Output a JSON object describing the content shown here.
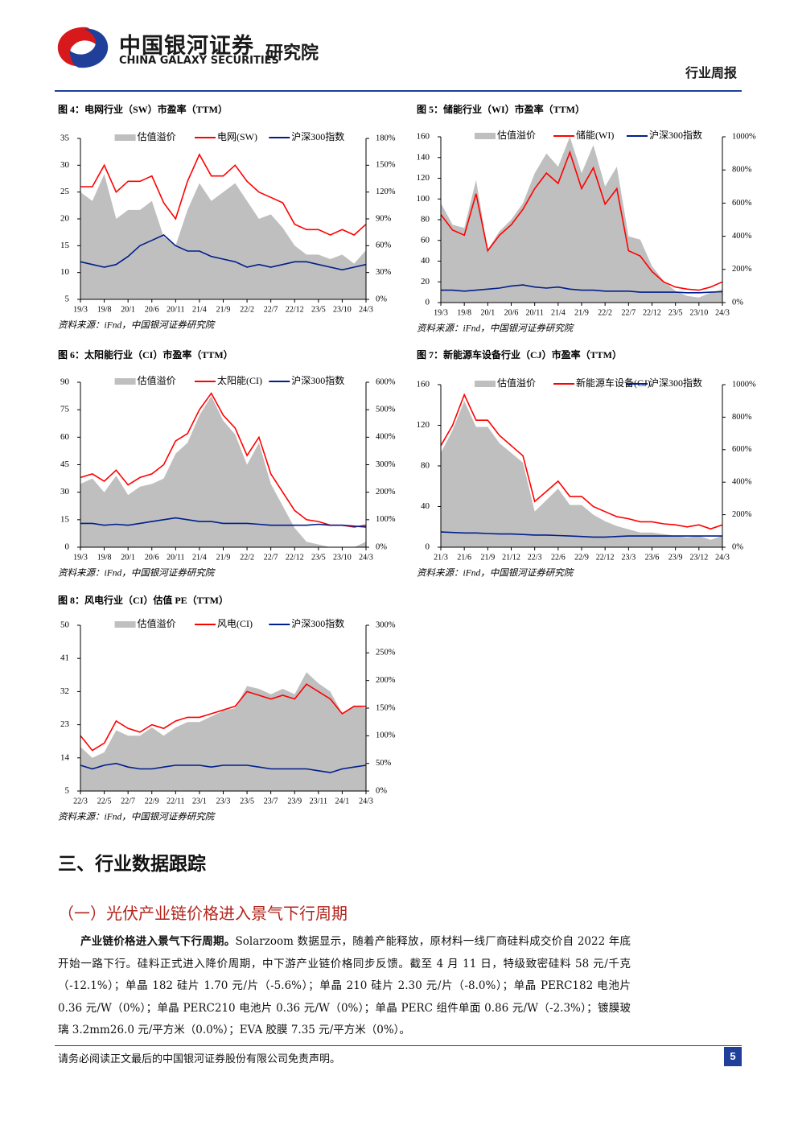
{
  "header": {
    "company": "中国银河证券",
    "company_en": "CHINA GALAXY SECURITIES",
    "institute": "研究院",
    "report_type": "行业周报"
  },
  "chart_data": [
    {
      "type": "line",
      "title": "图 4：电网行业（SW）市盈率（TTM）",
      "source": "资料来源：iFnd，中国银河证券研究院",
      "categories": [
        "19/3",
        null,
        "19/8",
        null,
        "20/1",
        null,
        "20/6",
        null,
        "20/11",
        null,
        "21/4",
        null,
        "21/9",
        null,
        "22/2",
        null,
        "22/7",
        null,
        "22/12",
        null,
        "23/5",
        null,
        "23/10",
        null,
        "24/3"
      ],
      "ylim": [
        5,
        35
      ],
      "yticks": [
        5,
        10,
        15,
        20,
        25,
        30,
        35
      ],
      "y2lim": [
        0,
        180
      ],
      "y2ticks": [
        {
          "value": 0,
          "label": "0%"
        },
        {
          "value": 30,
          "label": "30%"
        },
        {
          "value": 60,
          "label": "60%"
        },
        {
          "value": 90,
          "label": "90%"
        },
        {
          "value": 120,
          "label": "120%"
        },
        {
          "value": 150,
          "label": "150%"
        },
        {
          "value": 180,
          "label": "180%"
        }
      ],
      "series": [
        {
          "name": "估值溢价",
          "color": "#bfbfbf",
          "axis": "y2",
          "values": [
            120,
            110,
            140,
            90,
            100,
            100,
            110,
            70,
            60,
            100,
            130,
            110,
            120,
            130,
            110,
            90,
            95,
            80,
            60,
            50,
            50,
            45,
            50,
            40,
            55
          ]
        },
        {
          "name": "电网(SW)",
          "color": "#ff0000",
          "values": [
            26,
            26,
            30,
            25,
            27,
            27,
            28,
            23,
            20,
            27,
            32,
            28,
            28,
            30,
            27,
            25,
            24,
            23,
            19,
            18,
            18,
            17,
            18,
            17,
            19
          ]
        },
        {
          "name": "沪深300指数",
          "color": "#001f8c",
          "values": [
            12,
            11.5,
            11,
            11.5,
            13,
            15,
            16,
            17,
            15,
            14,
            14,
            13,
            12.5,
            12,
            11,
            11.5,
            11,
            11.5,
            12,
            12,
            11.5,
            11,
            10.5,
            11,
            11.5
          ]
        }
      ]
    },
    {
      "type": "line",
      "title": "图 5：储能行业（WI）市盈率（TTM）",
      "source": "资料来源：iFnd，中国银河证券研究院",
      "categories": [
        "19/3",
        null,
        "19/8",
        null,
        "20/1",
        null,
        "20/6",
        null,
        "20/11",
        null,
        "21/4",
        null,
        "21/9",
        null,
        "22/2",
        null,
        "22/7",
        null,
        "22/12",
        null,
        "23/5",
        null,
        "23/10",
        null,
        "24/3"
      ],
      "ylim": [
        0,
        160
      ],
      "yticks": [
        0,
        20,
        40,
        60,
        80,
        100,
        120,
        140,
        160
      ],
      "y2lim": [
        0,
        1000
      ],
      "y2ticks": [
        {
          "value": 0,
          "label": "0%"
        },
        {
          "value": 200,
          "label": "200%"
        },
        {
          "value": 400,
          "label": "400%"
        },
        {
          "value": 600,
          "label": "600%"
        },
        {
          "value": 800,
          "label": "800%"
        },
        {
          "value": 1000,
          "label": "1000%"
        }
      ],
      "series": [
        {
          "name": "估值溢价",
          "color": "#bfbfbf",
          "axis": "y2",
          "values": [
            600,
            470,
            450,
            740,
            320,
            430,
            500,
            600,
            780,
            900,
            820,
            1000,
            780,
            950,
            700,
            820,
            400,
            380,
            220,
            130,
            70,
            40,
            30,
            60,
            80
          ]
        },
        {
          "name": "储能(WI)",
          "color": "#ff0000",
          "values": [
            85,
            70,
            65,
            105,
            50,
            65,
            75,
            90,
            110,
            125,
            115,
            145,
            110,
            130,
            95,
            110,
            50,
            45,
            30,
            20,
            15,
            13,
            12,
            15,
            20
          ]
        },
        {
          "name": "沪深300指数",
          "color": "#001f8c",
          "values": [
            12,
            12,
            11,
            12,
            13,
            14,
            16,
            17,
            15,
            14,
            15,
            13,
            12,
            12,
            11,
            11,
            11,
            10,
            10,
            10,
            10,
            9.5,
            9.5,
            10,
            10.5
          ]
        }
      ]
    },
    {
      "type": "line",
      "title": "图 6：太阳能行业（CI）市盈率（TTM）",
      "source": "资料来源：iFnd，中国银河证券研究院",
      "categories": [
        "19/3",
        null,
        "19/8",
        null,
        "20/1",
        null,
        "20/6",
        null,
        "20/11",
        null,
        "21/4",
        null,
        "21/9",
        null,
        "22/2",
        null,
        "22/7",
        null,
        "22/12",
        null,
        "23/5",
        null,
        "23/10",
        null,
        "24/3"
      ],
      "ylim": [
        0,
        90
      ],
      "yticks": [
        0,
        15,
        30,
        45,
        60,
        75,
        90
      ],
      "y2lim": [
        0,
        600
      ],
      "y2ticks": [
        {
          "value": 0,
          "label": "0%"
        },
        {
          "value": 100,
          "label": "100%"
        },
        {
          "value": 200,
          "label": "200%"
        },
        {
          "value": 300,
          "label": "300%"
        },
        {
          "value": 400,
          "label": "400%"
        },
        {
          "value": 500,
          "label": "500%"
        },
        {
          "value": 600,
          "label": "600%"
        }
      ],
      "series": [
        {
          "name": "估值溢价",
          "color": "#bfbfbf",
          "axis": "y2",
          "values": [
            230,
            250,
            200,
            260,
            190,
            220,
            230,
            250,
            340,
            380,
            480,
            550,
            460,
            410,
            300,
            380,
            230,
            150,
            70,
            20,
            10,
            0,
            0,
            0,
            20
          ]
        },
        {
          "name": "太阳能(CI)",
          "color": "#ff0000",
          "values": [
            38,
            40,
            36,
            42,
            34,
            38,
            40,
            45,
            58,
            62,
            75,
            84,
            72,
            65,
            50,
            60,
            40,
            30,
            20,
            15,
            14,
            12,
            12,
            11,
            12
          ]
        },
        {
          "name": "沪深300指数",
          "color": "#001f8c",
          "values": [
            13,
            13,
            12,
            12.5,
            12,
            13,
            14,
            15,
            16,
            15,
            14,
            14,
            13,
            13,
            13,
            12.5,
            12,
            12,
            12,
            12,
            12.5,
            12,
            12,
            11.5,
            11
          ]
        }
      ]
    },
    {
      "type": "line",
      "title": "图 7：新能源车设备行业（CJ）市盈率（TTM）",
      "source": "资料来源：iFnd，中国银河证券研究院",
      "categories": [
        "21/3",
        null,
        "21/6",
        null,
        "21/9",
        null,
        "21/12",
        null,
        "22/3",
        null,
        "22/6",
        null,
        "22/9",
        null,
        "22/12",
        null,
        "23/3",
        null,
        "23/6",
        null,
        "23/9",
        null,
        "23/12",
        null,
        "24/3"
      ],
      "ylim": [
        0,
        160
      ],
      "yticks": [
        0,
        40,
        80,
        120,
        160
      ],
      "y2lim": [
        0,
        1000
      ],
      "y2ticks": [
        {
          "value": 0,
          "label": "0%"
        },
        {
          "value": 200,
          "label": "200%"
        },
        {
          "value": 400,
          "label": "400%"
        },
        {
          "value": 600,
          "label": "600%"
        },
        {
          "value": 800,
          "label": "800%"
        },
        {
          "value": 1000,
          "label": "1000%"
        }
      ],
      "series": [
        {
          "name": "估值溢价",
          "color": "#bfbfbf",
          "axis": "y2",
          "values": [
            580,
            720,
            900,
            740,
            740,
            640,
            580,
            520,
            220,
            290,
            360,
            260,
            260,
            200,
            160,
            130,
            110,
            90,
            90,
            80,
            70,
            60,
            70,
            45,
            70
          ]
        },
        {
          "name": "新能源车设备(CJ)",
          "color": "#ff0000",
          "values": [
            100,
            120,
            150,
            125,
            125,
            110,
            100,
            90,
            45,
            55,
            65,
            50,
            50,
            40,
            35,
            30,
            28,
            25,
            25,
            23,
            22,
            20,
            22,
            18,
            22
          ]
        },
        {
          "name": "沪深300指数",
          "color": "#001f8c",
          "values": [
            15,
            14.5,
            14,
            14,
            13.5,
            13,
            13,
            12.5,
            12,
            12,
            11.5,
            11,
            10.5,
            10,
            10,
            10.5,
            11,
            11,
            11,
            11,
            11,
            11,
            11,
            11,
            11
          ]
        }
      ]
    },
    {
      "type": "line",
      "title": "图 8：风电行业（CI）估值 PE（TTM）",
      "source": "资料来源：iFnd，中国银河证券研究院",
      "categories": [
        "22/3",
        null,
        "22/5",
        null,
        "22/7",
        null,
        "22/9",
        null,
        "22/11",
        null,
        "23/1",
        null,
        "23/3",
        null,
        "23/5",
        null,
        "23/7",
        null,
        "23/9",
        null,
        "23/11",
        null,
        "24/1",
        null,
        "24/3"
      ],
      "ylim": [
        5,
        50
      ],
      "yticks": [
        5,
        14,
        23,
        32,
        41,
        50
      ],
      "y2lim": [
        0,
        300
      ],
      "y2ticks": [
        {
          "value": 0,
          "label": "0%"
        },
        {
          "value": 50,
          "label": "50%"
        },
        {
          "value": 100,
          "label": "100%"
        },
        {
          "value": 150,
          "label": "150%"
        },
        {
          "value": 200,
          "label": "200%"
        },
        {
          "value": 250,
          "label": "250%"
        },
        {
          "value": 300,
          "label": "300%"
        }
      ],
      "series": [
        {
          "name": "估值溢价",
          "color": "#bfbfbf",
          "axis": "y2",
          "values": [
            80,
            60,
            70,
            110,
            100,
            100,
            115,
            100,
            115,
            125,
            125,
            135,
            145,
            150,
            190,
            185,
            175,
            185,
            175,
            215,
            195,
            180,
            140,
            155,
            150
          ]
        },
        {
          "name": "风电(CI)",
          "color": "#ff0000",
          "values": [
            20,
            16,
            18,
            24,
            22,
            21,
            23,
            22,
            24,
            25,
            25,
            26,
            27,
            28,
            32,
            31,
            30,
            31,
            30,
            34,
            32,
            30,
            26,
            28,
            28
          ]
        },
        {
          "name": "沪深300指数",
          "color": "#001f8c",
          "values": [
            12,
            11,
            12,
            12.5,
            11.5,
            11,
            11,
            11.5,
            12,
            12,
            12,
            11.5,
            12,
            12,
            12,
            11.5,
            11,
            11,
            11,
            11,
            10.5,
            10,
            11,
            11.5,
            12
          ]
        }
      ]
    }
  ],
  "section": {
    "title": "三、行业数据跟踪",
    "subsection": "（一）光伏产业链价格进入景气下行周期",
    "lead": "产业链价格进入景气下行周期。",
    "body": "Solarzoom 数据显示，随着产能释放，原材料一线厂商硅料成交价自 2022 年底开始一路下行。硅料正式进入降价周期，中下游产业链价格同步反馈。截至 4 月 11 日，特级致密硅料 58 元/千克（-12.1%）；单晶 182 硅片 1.70 元/片（-5.6%）；单晶 210 硅片 2.30 元/片（-8.0%）；单晶 PERC182 电池片 0.36 元/W（0%）；单晶 PERC210 电池片 0.36 元/W（0%）；单晶 PERC 组件单面 0.86 元/W（-2.3%）；镀膜玻璃 3.2mm26.0 元/平方米（0.0%）；EVA 胶膜 7.35 元/平方米（0%）。"
  },
  "footer": {
    "disclaimer": "请务必阅读正文最后的中国银河证券股份有限公司免责声明。",
    "page": "5"
  }
}
